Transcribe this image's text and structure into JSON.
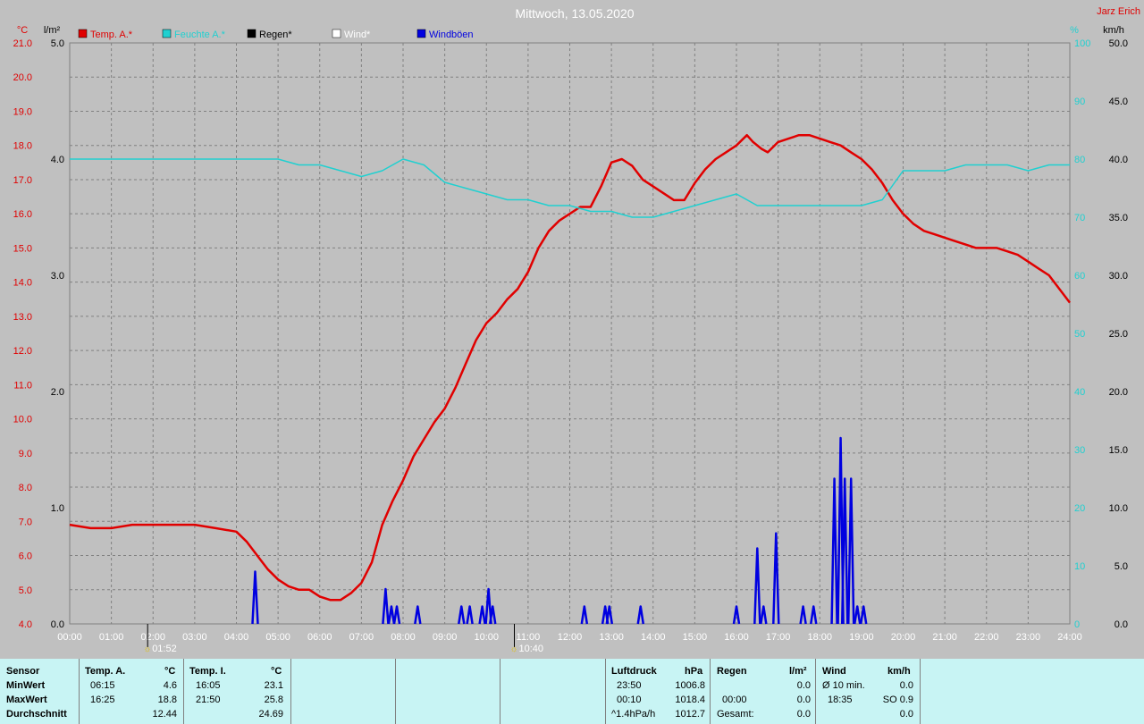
{
  "title": "Mittwoch, 13.05.2020",
  "author": "Jarz Erich",
  "colors": {
    "background": "#c0c0c0",
    "temp": "#e00000",
    "humidity": "#20d0d0",
    "rain": "#000000",
    "wind": "#ffffff",
    "gusts": "#0000e0",
    "grid": "#808080",
    "stats_bg": "#c8f4f4"
  },
  "chart_data": {
    "type": "line",
    "title": "Mittwoch, 13.05.2020",
    "x_ticks": [
      "00:00",
      "01:00",
      "02:00",
      "03:00",
      "04:00",
      "05:00",
      "06:00",
      "07:00",
      "08:00",
      "09:00",
      "10:00",
      "11:00",
      "12:00",
      "13:00",
      "14:00",
      "15:00",
      "16:00",
      "17:00",
      "18:00",
      "19:00",
      "20:00",
      "21:00",
      "22:00",
      "23:00",
      "24:00"
    ],
    "axes": {
      "temp": {
        "unit": "°C",
        "min": 4.0,
        "max": 21.0,
        "ticks": [
          "4.0",
          "5.0",
          "6.0",
          "7.0",
          "8.0",
          "9.0",
          "10.0",
          "11.0",
          "12.0",
          "13.0",
          "14.0",
          "15.0",
          "16.0",
          "17.0",
          "18.0",
          "19.0",
          "20.0",
          "21.0"
        ]
      },
      "rain": {
        "unit": "l/m²",
        "min": 0.0,
        "max": 5.0,
        "ticks": [
          "0.0",
          "1.0",
          "2.0",
          "3.0",
          "4.0",
          "5.0"
        ]
      },
      "humidity": {
        "unit": "%",
        "min": 0,
        "max": 100,
        "ticks": [
          "0",
          "10",
          "20",
          "30",
          "40",
          "50",
          "60",
          "70",
          "80",
          "90",
          "100"
        ]
      },
      "wind": {
        "unit": "km/h",
        "min": 0.0,
        "max": 50.0,
        "ticks": [
          "0.0",
          "5.0",
          "10.0",
          "15.0",
          "20.0",
          "25.0",
          "30.0",
          "35.0",
          "40.0",
          "45.0",
          "50.0"
        ]
      }
    },
    "grid": true,
    "legend": [
      {
        "label": "Temp. A.*",
        "color": "#e00000"
      },
      {
        "label": "Feuchte A.*",
        "color": "#20d0d0"
      },
      {
        "label": "Regen*",
        "color": "#000000"
      },
      {
        "label": "Wind*",
        "color": "#ffffff"
      },
      {
        "label": "Windböen",
        "color": "#0000e0"
      }
    ],
    "series": [
      {
        "name": "Temp. A.*",
        "axis": "temp",
        "x_hours": [
          0,
          0.5,
          1,
          1.5,
          2,
          2.5,
          3,
          3.5,
          4,
          4.25,
          4.5,
          4.75,
          5,
          5.25,
          5.5,
          5.75,
          6,
          6.25,
          6.5,
          6.75,
          7,
          7.25,
          7.5,
          7.75,
          8,
          8.25,
          8.5,
          8.75,
          9,
          9.25,
          9.5,
          9.75,
          10,
          10.25,
          10.5,
          10.75,
          11,
          11.25,
          11.5,
          11.75,
          12,
          12.25,
          12.5,
          12.75,
          13,
          13.25,
          13.5,
          13.75,
          14,
          14.25,
          14.5,
          14.75,
          15,
          15.25,
          15.5,
          15.75,
          16,
          16.25,
          16.4,
          16.6,
          16.75,
          17,
          17.25,
          17.5,
          17.75,
          18,
          18.25,
          18.5,
          18.75,
          19,
          19.25,
          19.5,
          19.75,
          20,
          20.25,
          20.5,
          20.75,
          21,
          21.25,
          21.5,
          21.75,
          22,
          22.25,
          22.5,
          22.75,
          23,
          23.25,
          23.5,
          23.75,
          24
        ],
        "values": [
          6.9,
          6.8,
          6.8,
          6.9,
          6.9,
          6.9,
          6.9,
          6.8,
          6.7,
          6.4,
          6.0,
          5.6,
          5.3,
          5.1,
          5.0,
          5.0,
          4.8,
          4.7,
          4.7,
          4.9,
          5.2,
          5.8,
          6.9,
          7.6,
          8.2,
          8.9,
          9.4,
          9.9,
          10.3,
          10.9,
          11.6,
          12.3,
          12.8,
          13.1,
          13.5,
          13.8,
          14.3,
          15.0,
          15.5,
          15.8,
          16.0,
          16.2,
          16.2,
          16.8,
          17.5,
          17.6,
          17.4,
          17.0,
          16.8,
          16.6,
          16.4,
          16.4,
          16.9,
          17.3,
          17.6,
          17.8,
          18.0,
          18.3,
          18.1,
          17.9,
          17.8,
          18.1,
          18.2,
          18.3,
          18.3,
          18.2,
          18.1,
          18.0,
          17.8,
          17.6,
          17.3,
          16.9,
          16.4,
          16.0,
          15.7,
          15.5,
          15.4,
          15.3,
          15.2,
          15.1,
          15.0,
          15.0,
          15.0,
          14.9,
          14.8,
          14.6,
          14.4,
          14.2,
          13.8,
          13.4
        ]
      },
      {
        "name": "Feuchte A.*",
        "axis": "humidity",
        "x_hours": [
          0,
          1,
          2,
          3,
          4,
          5,
          5.5,
          6,
          6.5,
          7,
          7.5,
          8,
          8.5,
          9,
          9.5,
          10,
          10.5,
          11,
          11.5,
          12,
          12.5,
          13,
          13.5,
          14,
          14.5,
          15,
          15.5,
          16,
          16.5,
          17,
          17.5,
          18,
          18.5,
          19,
          19.5,
          20,
          20.5,
          21,
          21.5,
          22,
          22.5,
          23,
          23.5,
          24
        ],
        "values": [
          80,
          80,
          80,
          80,
          80,
          80,
          79,
          79,
          78,
          77,
          78,
          80,
          79,
          76,
          75,
          74,
          73,
          73,
          72,
          72,
          71,
          71,
          70,
          70,
          71,
          72,
          73,
          74,
          72,
          72,
          72,
          72,
          72,
          72,
          73,
          78,
          78,
          78,
          79,
          79,
          79,
          78,
          79,
          79
        ]
      },
      {
        "name": "Windböen",
        "axis": "wind",
        "x_hours": [
          4.45,
          7.58,
          7.72,
          7.85,
          8.35,
          9.4,
          9.6,
          9.9,
          10.05,
          10.15,
          12.35,
          12.85,
          12.95,
          13.7,
          16.0,
          16.5,
          16.65,
          16.95,
          17.6,
          17.85,
          18.35,
          18.5,
          18.6,
          18.75,
          18.9,
          19.05
        ],
        "values": [
          4.5,
          3.0,
          1.5,
          1.5,
          1.5,
          1.5,
          1.5,
          1.5,
          3.0,
          1.5,
          1.5,
          1.5,
          1.5,
          1.5,
          1.5,
          6.5,
          1.5,
          7.8,
          1.5,
          1.5,
          12.5,
          16.0,
          12.5,
          12.5,
          1.5,
          1.5
        ]
      }
    ],
    "markers": [
      {
        "label": "01:52",
        "hour": 1.87
      },
      {
        "label": "10:40",
        "hour": 10.67
      }
    ]
  },
  "stats": {
    "sensor": {
      "header": "Sensor",
      "min": "MinWert",
      "max": "MaxWert",
      "avg": "Durchschnitt"
    },
    "temp_a": {
      "header": "Temp. A.",
      "unit": "°C",
      "min_time": "06:15",
      "min_val": "4.6",
      "max_time": "16:25",
      "max_val": "18.8",
      "avg": "12.44"
    },
    "temp_i": {
      "header": "Temp. I.",
      "unit": "°C",
      "min_time": "16:05",
      "min_val": "23.1",
      "max_time": "21:50",
      "max_val": "25.8",
      "avg": "24.69"
    },
    "pressure": {
      "header": "Luftdruck",
      "unit": "hPa",
      "min_time": "23:50",
      "min_val": "1006.8",
      "max_time": "00:10",
      "max_val": "1018.4",
      "trend": "^1.4hPa/h",
      "avg": "1012.7"
    },
    "rain": {
      "header": "Regen",
      "unit": "l/m²",
      "r1_label": "",
      "r1_val": "0.0",
      "r2_label": "00:00",
      "r2_val": "0.0",
      "r3_label": "Gesamt:",
      "r3_val": "0.0"
    },
    "wind": {
      "header": "Wind",
      "unit": "km/h",
      "r1_label": "Ø 10 min.",
      "r1_val": "0.0",
      "r2_label": "18:35",
      "r2_val": "SO 0.9",
      "r3_val": "0.0"
    }
  }
}
